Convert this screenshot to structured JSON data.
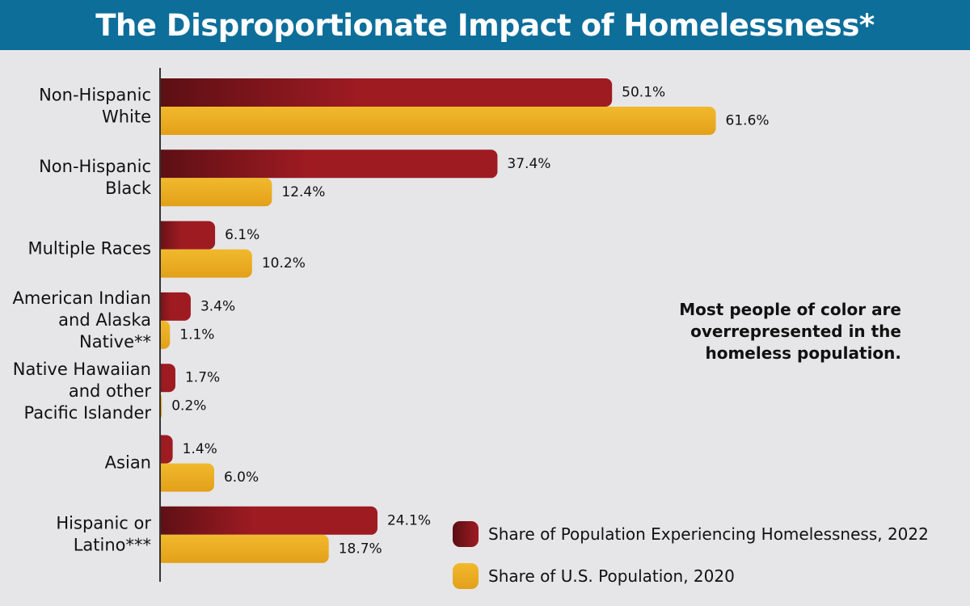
{
  "header": {
    "title": "The Disproportionate Impact of Homelessness*"
  },
  "callout": {
    "text": "Most people of color are\noverrepresented in the\nhomeless population."
  },
  "colors": {
    "homeless_dark": "#5a0f14",
    "homeless": "#9e1b22",
    "population_light": "#f1b92c",
    "population": "#e3a01a",
    "axis": "#333333"
  },
  "chart_data": {
    "type": "bar",
    "orientation": "horizontal",
    "categories": [
      [
        "Non-Hispanic",
        "White"
      ],
      [
        "Non-Hispanic",
        "Black"
      ],
      [
        "Multiple Races"
      ],
      [
        "American Indian",
        "and Alaska",
        "Native**"
      ],
      [
        "Native Hawaiian",
        "and other",
        "Pacific Islander"
      ],
      [
        "Asian"
      ],
      [
        "Hispanic or",
        "Latino***"
      ]
    ],
    "series": [
      {
        "name": "Share of Population Experiencing Homelessness, 2022",
        "values": [
          50.1,
          37.4,
          6.1,
          3.4,
          1.7,
          1.4,
          24.1
        ],
        "labels": [
          "50.1%",
          "37.4%",
          "6.1%",
          "3.4%",
          "1.7%",
          "1.4%",
          "24.1%"
        ]
      },
      {
        "name": "Share of U.S. Population, 2020",
        "values": [
          61.6,
          12.4,
          10.2,
          1.1,
          0.2,
          6.0,
          18.7
        ],
        "labels": [
          "61.6%",
          "12.4%",
          "10.2%",
          "1.1%",
          "0.2%",
          "6.0%",
          "18.7%"
        ]
      }
    ],
    "unit": "%",
    "xlim": [
      0,
      62
    ],
    "grid": false,
    "legend_position": "bottom-right"
  }
}
